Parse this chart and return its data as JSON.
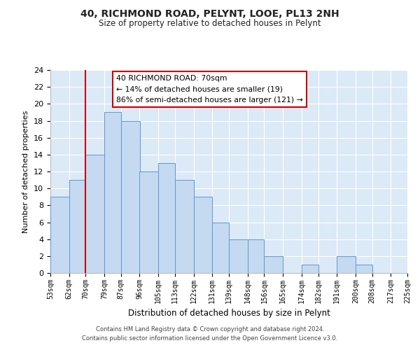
{
  "title": "40, RICHMOND ROAD, PELYNT, LOOE, PL13 2NH",
  "subtitle": "Size of property relative to detached houses in Pelynt",
  "xlabel": "Distribution of detached houses by size in Pelynt",
  "ylabel": "Number of detached properties",
  "bin_edges": [
    53,
    62,
    70,
    79,
    87,
    96,
    105,
    113,
    122,
    131,
    139,
    148,
    156,
    165,
    174,
    182,
    191,
    200,
    208,
    217,
    225
  ],
  "counts": [
    9,
    11,
    14,
    19,
    18,
    12,
    13,
    11,
    9,
    6,
    4,
    4,
    2,
    0,
    1,
    0,
    2,
    1,
    0,
    0
  ],
  "bar_color": "#c5d9f0",
  "bar_edge_color": "#5b9bd5",
  "reference_line_x": 70,
  "reference_line_color": "#cc0000",
  "ylim": [
    0,
    24
  ],
  "yticks": [
    0,
    2,
    4,
    6,
    8,
    10,
    12,
    14,
    16,
    18,
    20,
    22,
    24
  ],
  "annotation_title": "40 RICHMOND ROAD: 70sqm",
  "annotation_line1": "← 14% of detached houses are smaller (19)",
  "annotation_line2": "86% of semi-detached houses are larger (121) →",
  "annotation_box_color": "#ffffff",
  "annotation_box_edge_color": "#cc0000",
  "footer_line1": "Contains HM Land Registry data © Crown copyright and database right 2024.",
  "footer_line2": "Contains public sector information licensed under the Open Government Licence v3.0.",
  "background_color": "#dce9f7",
  "grid_color": "#ffffff",
  "fig_background": "#ffffff",
  "tick_labels": [
    "53sqm",
    "62sqm",
    "70sqm",
    "79sqm",
    "87sqm",
    "96sqm",
    "105sqm",
    "113sqm",
    "122sqm",
    "131sqm",
    "139sqm",
    "148sqm",
    "156sqm",
    "165sqm",
    "174sqm",
    "182sqm",
    "191sqm",
    "200sqm",
    "208sqm",
    "217sqm",
    "225sqm"
  ]
}
